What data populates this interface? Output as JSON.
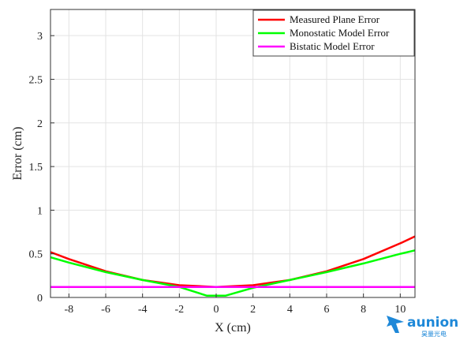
{
  "chart_data": {
    "type": "line",
    "xlabel": "X (cm)",
    "ylabel": "Error (cm)",
    "xlim": [
      -9,
      10.8
    ],
    "ylim": [
      0,
      3.3
    ],
    "x_ticks": [
      -8,
      -6,
      -4,
      -2,
      0,
      2,
      4,
      6,
      8,
      10
    ],
    "y_ticks": [
      0,
      0.5,
      1,
      1.5,
      2,
      2.5,
      3
    ],
    "grid": true,
    "legend_position": "top-right",
    "series": [
      {
        "name": "Measured Plane Error",
        "color": "#ff0000",
        "x": [
          -9,
          -8,
          -6,
          -4,
          -2,
          0,
          2,
          4,
          6,
          8,
          10,
          10.8
        ],
        "y": [
          0.52,
          0.44,
          0.3,
          0.2,
          0.14,
          0.12,
          0.14,
          0.2,
          0.3,
          0.44,
          0.62,
          0.7
        ]
      },
      {
        "name": "Monostatic Model Error",
        "color": "#00ff00",
        "x": [
          -9,
          -8,
          -6,
          -4,
          -2,
          -0.5,
          0.5,
          2,
          4,
          6,
          8,
          10,
          10.8
        ],
        "y": [
          0.46,
          0.4,
          0.29,
          0.2,
          0.12,
          0.02,
          0.02,
          0.11,
          0.2,
          0.29,
          0.39,
          0.5,
          0.54
        ]
      },
      {
        "name": "Bistatic Model Error",
        "color": "#ff00ff",
        "x": [
          -9,
          10.8
        ],
        "y": [
          0.12,
          0.12
        ]
      }
    ]
  },
  "watermark": {
    "brand": "aunion",
    "sub": "昊量光电",
    "icon": "plane-icon",
    "color": "#1e88d8"
  }
}
